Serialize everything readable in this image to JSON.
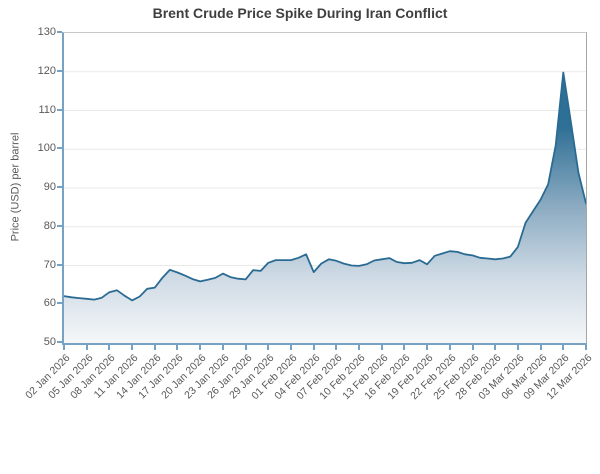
{
  "title": "Brent Crude Price Spike During Iran Conflict",
  "y_axis_title": "Price (USD) per barrel",
  "colors": {
    "line": "#2a6b93",
    "area_gradient_top": "#2d6e96",
    "area_gradient_bottom": "#f5f7f9",
    "axis": "#78a2c4",
    "grid": "#e9e9e9",
    "plot_border": "#c9c9c9",
    "title_text": "#3f3f3f",
    "tick_text": "#595959"
  },
  "chart_data": {
    "type": "area",
    "title": "Brent Crude Price Spike During Iran Conflict",
    "xlabel": "",
    "ylabel": "Price (USD) per barrel",
    "ylim": [
      50,
      130
    ],
    "y_ticks": [
      50,
      60,
      70,
      80,
      90,
      100,
      110,
      120,
      130
    ],
    "grid": "horizontal",
    "legend": null,
    "x_tick_step": 3,
    "x_tick_labels": [
      "02 Jan 2026",
      "05 Jan 2026",
      "08 Jan 2026",
      "11 Jan 2026",
      "14 Jan 2026",
      "17 Jan 2026",
      "20 Jan 2026",
      "23 Jan 2026",
      "26 Jan 2026",
      "29 Jan 2026",
      "01 Feb 2026",
      "04 Feb 2026",
      "07 Feb 2026",
      "10 Feb 2026",
      "13 Feb 2026",
      "16 Feb 2026",
      "19 Feb 2026",
      "22 Feb 2026",
      "25 Feb 2026",
      "28 Feb 2026",
      "03 Mar 2026",
      "06 Mar 2026",
      "09 Mar 2026",
      "12 Mar 2026"
    ],
    "x": [
      "02 Jan 2026",
      "03 Jan 2026",
      "04 Jan 2026",
      "05 Jan 2026",
      "06 Jan 2026",
      "07 Jan 2026",
      "08 Jan 2026",
      "09 Jan 2026",
      "10 Jan 2026",
      "11 Jan 2026",
      "12 Jan 2026",
      "13 Jan 2026",
      "14 Jan 2026",
      "15 Jan 2026",
      "16 Jan 2026",
      "17 Jan 2026",
      "18 Jan 2026",
      "19 Jan 2026",
      "20 Jan 2026",
      "21 Jan 2026",
      "22 Jan 2026",
      "23 Jan 2026",
      "24 Jan 2026",
      "25 Jan 2026",
      "26 Jan 2026",
      "27 Jan 2026",
      "28 Jan 2026",
      "29 Jan 2026",
      "30 Jan 2026",
      "31 Jan 2026",
      "01 Feb 2026",
      "02 Feb 2026",
      "03 Feb 2026",
      "04 Feb 2026",
      "05 Feb 2026",
      "06 Feb 2026",
      "07 Feb 2026",
      "08 Feb 2026",
      "09 Feb 2026",
      "10 Feb 2026",
      "11 Feb 2026",
      "12 Feb 2026",
      "13 Feb 2026",
      "14 Feb 2026",
      "15 Feb 2026",
      "16 Feb 2026",
      "17 Feb 2026",
      "18 Feb 2026",
      "19 Feb 2026",
      "20 Feb 2026",
      "21 Feb 2026",
      "22 Feb 2026",
      "23 Feb 2026",
      "24 Feb 2026",
      "25 Feb 2026",
      "26 Feb 2026",
      "27 Feb 2026",
      "28 Feb 2026",
      "01 Mar 2026",
      "02 Mar 2026",
      "03 Mar 2026",
      "04 Mar 2026",
      "05 Mar 2026",
      "06 Mar 2026",
      "07 Mar 2026",
      "08 Mar 2026",
      "09 Mar 2026",
      "10 Mar 2026",
      "11 Mar 2026",
      "12 Mar 2026"
    ],
    "values": [
      62.1,
      61.8,
      61.6,
      61.4,
      61.2,
      61.7,
      63.1,
      63.6,
      62.2,
      61.0,
      62.0,
      64.0,
      64.3,
      66.8,
      68.9,
      68.2,
      67.4,
      66.5,
      65.9,
      66.3,
      66.8,
      67.9,
      67.0,
      66.6,
      66.4,
      68.8,
      68.6,
      70.7,
      71.4,
      71.4,
      71.4,
      72.0,
      72.9,
      68.3,
      70.5,
      71.6,
      71.2,
      70.5,
      70.0,
      69.9,
      70.3,
      71.3,
      71.6,
      71.9,
      70.9,
      70.6,
      70.7,
      71.4,
      70.3,
      72.5,
      73.1,
      73.7,
      73.5,
      72.9,
      72.6,
      72.0,
      71.8,
      71.6,
      71.8,
      72.3,
      74.8,
      81.0,
      84.0,
      87.0,
      91.0,
      101.0,
      119.8,
      107.0,
      94.0,
      86.0
    ]
  }
}
